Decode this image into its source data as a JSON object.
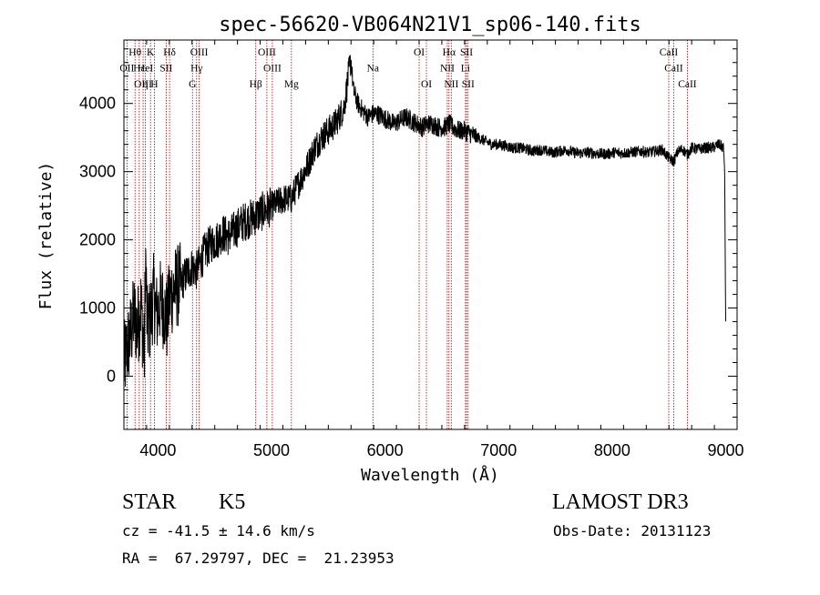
{
  "chart_data": {
    "type": "line",
    "title": "spec-56620-VB064N21V1_sp06-140.fits",
    "xlabel": "Wavelength (Å)",
    "ylabel": "Flux (relative)",
    "xlim": [
      3700,
      9100
    ],
    "ylim": [
      -780,
      4930
    ],
    "xticks": [
      4000,
      5000,
      6000,
      7000,
      8000,
      9000
    ],
    "yticks": [
      0,
      1000,
      2000,
      3000,
      4000
    ],
    "series": [
      {
        "name": "spectrum",
        "x": [
          3700,
          3730,
          3760,
          3790,
          3820,
          3850,
          3880,
          3890,
          3905,
          3935,
          3960,
          3990,
          4020,
          4050,
          4080,
          4101,
          4150,
          4200,
          4250,
          4300,
          4340,
          4380,
          4420,
          4470,
          4520,
          4570,
          4620,
          4680,
          4740,
          4800,
          4861,
          4900,
          4960,
          5010,
          5060,
          5110,
          5175,
          5200,
          5260,
          5320,
          5380,
          5440,
          5500,
          5560,
          5610,
          5640,
          5660,
          5680,
          5700,
          5720,
          5760,
          5800,
          5850,
          5893,
          5930,
          5980,
          6030,
          6080,
          6130,
          6180,
          6230,
          6280,
          6330,
          6370,
          6420,
          6470,
          6520,
          6563,
          6600,
          6650,
          6700,
          6760,
          6820,
          6880,
          6940,
          7000,
          7060,
          7120,
          7180,
          7240,
          7300,
          7360,
          7420,
          7480,
          7540,
          7600,
          7660,
          7720,
          7780,
          7840,
          7900,
          7960,
          8020,
          8080,
          8140,
          8200,
          8260,
          8320,
          8380,
          8440,
          8498,
          8542,
          8580,
          8620,
          8662,
          8700,
          8760,
          8820,
          8880,
          8940,
          8980,
          8990,
          9000
        ],
        "values": [
          150,
          400,
          620,
          900,
          700,
          1050,
          300,
          1800,
          700,
          850,
          1200,
          900,
          1100,
          1000,
          800,
          1150,
          1300,
          1350,
          1500,
          1600,
          1550,
          1700,
          1850,
          1950,
          2000,
          2100,
          2050,
          2150,
          2250,
          2300,
          2350,
          2400,
          2450,
          2500,
          2550,
          2600,
          2600,
          2700,
          2900,
          3100,
          3350,
          3500,
          3600,
          3700,
          3850,
          3950,
          4200,
          4450,
          4650,
          4200,
          4000,
          3900,
          3800,
          3850,
          3850,
          3800,
          3750,
          3700,
          3750,
          3800,
          3750,
          3700,
          3650,
          3700,
          3700,
          3650,
          3650,
          3700,
          3650,
          3600,
          3600,
          3550,
          3500,
          3450,
          3400,
          3400,
          3380,
          3350,
          3350,
          3330,
          3300,
          3320,
          3300,
          3280,
          3300,
          3320,
          3280,
          3270,
          3280,
          3270,
          3260,
          3260,
          3280,
          3270,
          3280,
          3290,
          3300,
          3280,
          3300,
          3320,
          3200,
          3150,
          3300,
          3330,
          3250,
          3350,
          3330,
          3350,
          3350,
          3400,
          3350,
          3100,
          700
        ]
      }
    ],
    "emission_lines": [
      {
        "label": "Hθ",
        "wavelength": 3798,
        "row": 0
      },
      {
        "label": "K",
        "wavelength": 3934,
        "row": 0
      },
      {
        "label": "Hδ",
        "wavelength": 4102,
        "row": 0
      },
      {
        "label": "OIII",
        "wavelength": 4363,
        "row": 0
      },
      {
        "label": "OIII",
        "wavelength": 4959,
        "row": 0
      },
      {
        "label": "OI",
        "wavelength": 6300,
        "row": 0
      },
      {
        "label": "Hα",
        "wavelength": 6563,
        "row": 0
      },
      {
        "label": "SII",
        "wavelength": 6717,
        "row": 0
      },
      {
        "label": "CaII",
        "wavelength": 8498,
        "row": 0
      },
      {
        "label": "OII",
        "wavelength": 3727,
        "row": 1
      },
      {
        "label": "Hε",
        "wavelength": 3835,
        "row": 1
      },
      {
        "label": "HeI",
        "wavelength": 3889,
        "row": 1
      },
      {
        "label": "SII",
        "wavelength": 4072,
        "row": 1
      },
      {
        "label": "Hγ",
        "wavelength": 4340,
        "row": 1
      },
      {
        "label": "OIII",
        "wavelength": 5007,
        "row": 1
      },
      {
        "label": "Na",
        "wavelength": 5893,
        "row": 1
      },
      {
        "label": "NII",
        "wavelength": 6548,
        "row": 1
      },
      {
        "label": "Li",
        "wavelength": 6708,
        "row": 1
      },
      {
        "label": "CaII",
        "wavelength": 8542,
        "row": 1
      },
      {
        "label": "OIII",
        "wavelength": 3869,
        "row": 2
      },
      {
        "label": "η",
        "wavelength": 3889,
        "row": 2
      },
      {
        "label": "H",
        "wavelength": 3968,
        "row": 2
      },
      {
        "label": "G",
        "wavelength": 4304,
        "row": 2
      },
      {
        "label": "Hβ",
        "wavelength": 4861,
        "row": 2
      },
      {
        "label": "Mg",
        "wavelength": 5175,
        "row": 2
      },
      {
        "label": "OI",
        "wavelength": 6364,
        "row": 2
      },
      {
        "label": "NII",
        "wavelength": 6583,
        "row": 2
      },
      {
        "label": "SII",
        "wavelength": 6731,
        "row": 2
      },
      {
        "label": "CaII",
        "wavelength": 8662,
        "row": 2
      }
    ]
  },
  "info": {
    "object_class": "STAR",
    "subclass": "K5",
    "survey": "LAMOST DR3",
    "redshift": "cz = -41.5 ± 14.6 km/s",
    "obs_date": "Obs-Date: 20131123",
    "coords": "RA =  67.29797, DEC =  21.23953"
  },
  "colors": {
    "line": "#000000",
    "marker_lines": "#b00000",
    "axis": "#000000"
  }
}
